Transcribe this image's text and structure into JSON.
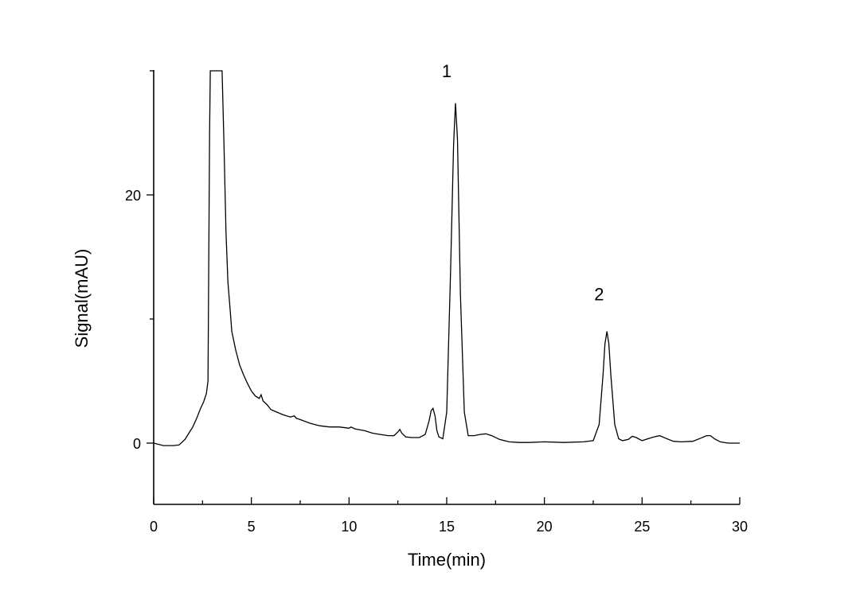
{
  "chart_data": {
    "type": "line",
    "title": "",
    "xlabel": "Time(min)",
    "ylabel": "Signal(mAU)",
    "xlim": [
      0,
      30
    ],
    "ylim": [
      -5,
      30
    ],
    "x_ticks": [
      0,
      5,
      10,
      15,
      20,
      25,
      30
    ],
    "y_ticks": [
      0,
      20
    ],
    "grid": false,
    "annotations": [
      {
        "text": "1",
        "x": 15.0,
        "y": 29.5
      },
      {
        "text": "2",
        "x": 22.8,
        "y": 11.5
      }
    ],
    "series": [
      {
        "x": [
          0,
          0.5,
          1.0,
          1.3,
          1.6,
          1.8,
          2.0,
          2.2,
          2.4,
          2.55,
          2.7,
          2.78,
          2.82,
          2.86,
          2.9,
          3.5,
          3.6,
          3.7,
          3.8,
          3.9,
          4.0,
          4.2,
          4.4,
          4.6,
          4.8,
          5.0,
          5.2,
          5.4,
          5.5,
          5.6,
          5.8,
          6.0,
          6.3,
          6.6,
          7.0,
          7.2,
          7.3,
          7.5,
          8.0,
          8.5,
          9.0,
          9.5,
          10.0,
          10.1,
          10.3,
          10.8,
          11.2,
          11.6,
          12.0,
          12.3,
          12.5,
          12.6,
          12.7,
          12.9,
          13.2,
          13.6,
          13.9,
          14.1,
          14.2,
          14.3,
          14.4,
          14.5,
          14.6,
          14.8,
          15.0,
          15.2,
          15.35,
          15.45,
          15.55,
          15.7,
          15.9,
          16.1,
          16.4,
          16.7,
          17.0,
          17.3,
          17.7,
          18.2,
          18.7,
          19.2,
          20.0,
          21.0,
          22.0,
          22.5,
          22.8,
          23.0,
          23.1,
          23.2,
          23.3,
          23.4,
          23.6,
          23.8,
          24.0,
          24.3,
          24.5,
          24.7,
          25.0,
          25.3,
          25.6,
          25.9,
          26.2,
          26.6,
          27.0,
          27.6,
          28.0,
          28.3,
          28.5,
          28.7,
          29.0,
          29.4,
          30.0
        ],
        "y": [
          0,
          -0.2,
          -0.2,
          -0.15,
          0.3,
          0.8,
          1.3,
          2.0,
          2.8,
          3.3,
          4.0,
          5.0,
          15.0,
          25.0,
          30.0,
          30.0,
          24.0,
          17.0,
          13.0,
          11.0,
          9.0,
          7.5,
          6.3,
          5.5,
          4.8,
          4.2,
          3.8,
          3.6,
          3.9,
          3.4,
          3.1,
          2.7,
          2.5,
          2.3,
          2.1,
          2.2,
          2.0,
          1.9,
          1.6,
          1.4,
          1.3,
          1.3,
          1.2,
          1.3,
          1.15,
          1.0,
          0.8,
          0.7,
          0.6,
          0.6,
          0.9,
          1.1,
          0.8,
          0.5,
          0.45,
          0.45,
          0.7,
          1.8,
          2.6,
          2.8,
          2.2,
          1.0,
          0.5,
          0.35,
          2.5,
          14.0,
          24.0,
          27.4,
          24.5,
          12.0,
          2.5,
          0.6,
          0.6,
          0.7,
          0.75,
          0.6,
          0.3,
          0.1,
          0.05,
          0.05,
          0.1,
          0.05,
          0.1,
          0.2,
          1.5,
          5.5,
          8.0,
          9.0,
          8.0,
          5.5,
          1.5,
          0.35,
          0.2,
          0.3,
          0.55,
          0.45,
          0.2,
          0.35,
          0.5,
          0.6,
          0.4,
          0.15,
          0.1,
          0.15,
          0.4,
          0.6,
          0.6,
          0.35,
          0.1,
          0.0,
          0.0
        ]
      }
    ]
  }
}
